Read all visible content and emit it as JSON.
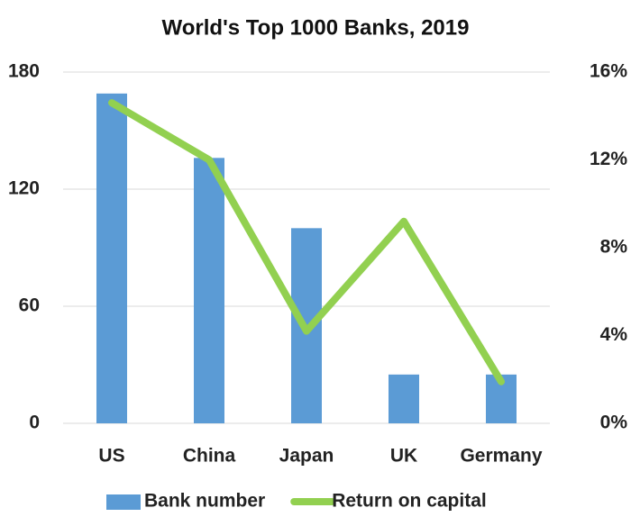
{
  "chart_data": {
    "type": "bar",
    "title": "World's Top 1000 Banks, 2019",
    "categories": [
      "US",
      "China",
      "Japan",
      "UK",
      "Germany"
    ],
    "series": [
      {
        "name": "Bank number",
        "color": "#5b9bd5",
        "values": [
          169,
          136,
          100,
          25,
          25
        ]
      },
      {
        "name": "Return on capital",
        "color": "#92d050",
        "type": "line",
        "axis": "y2",
        "values": [
          14.6,
          12.0,
          4.2,
          9.2,
          1.9
        ]
      }
    ],
    "ylim": [
      0,
      180
    ],
    "yticks": [
      0,
      60,
      120,
      180
    ],
    "y2lim": [
      0,
      16
    ],
    "y2ticks": [
      {
        "value": 0,
        "label": "0%"
      },
      {
        "value": 4,
        "label": "4%"
      },
      {
        "value": 8,
        "label": "8%"
      },
      {
        "value": 12,
        "label": "12%"
      },
      {
        "value": 16,
        "label": "16%"
      }
    ],
    "grid": true,
    "legend": "bottom"
  }
}
